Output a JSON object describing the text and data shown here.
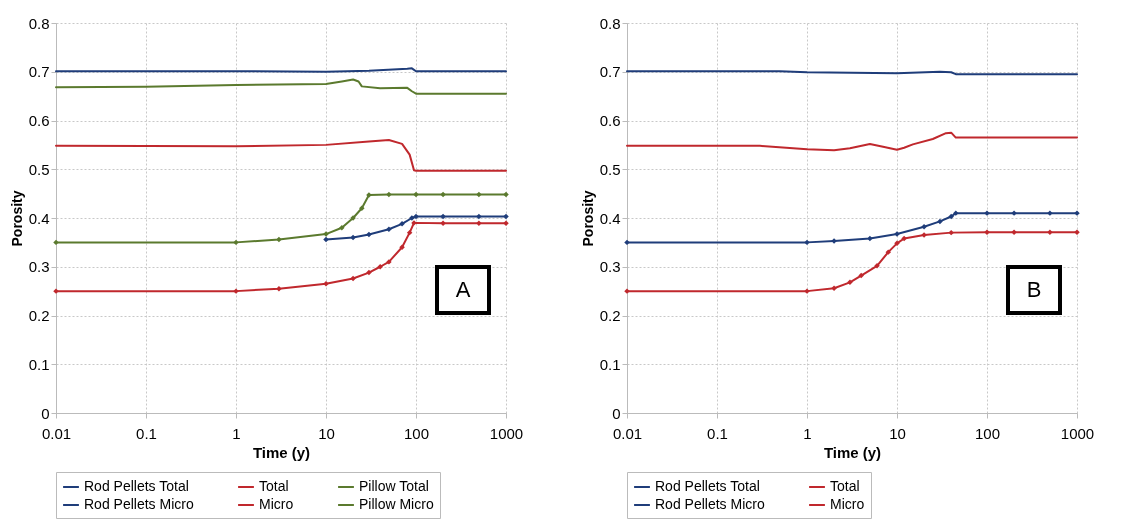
{
  "chart_data": [
    {
      "type": "line",
      "xlabel": "Time (y)",
      "ylabel": "Porosity",
      "annotations": [
        "A"
      ],
      "log": "x",
      "grid": true,
      "legend": "bottom",
      "line_style": "solid",
      "xlim": [
        0.01,
        1000
      ],
      "xticks": [
        0.01,
        0.1,
        1,
        10,
        100,
        1000
      ],
      "ylim": [
        0,
        0.8
      ],
      "yticks": [
        0,
        0.1,
        0.2,
        0.3,
        0.4,
        0.5,
        0.6,
        0.7,
        0.8
      ],
      "series": [
        {
          "name": "Rod Pellets Total",
          "color": "#1f3d7a",
          "marker": "none",
          "x": [
            0.01,
            1,
            10,
            30,
            80,
            90,
            100,
            1000
          ],
          "values": [
            0.701,
            0.701,
            0.7,
            0.702,
            0.706,
            0.707,
            0.701,
            0.701
          ]
        },
        {
          "name": "Total",
          "color": "#c0282d",
          "marker": "none",
          "x": [
            0.01,
            1,
            10,
            30,
            50,
            70,
            85,
            95,
            100,
            1000
          ],
          "values": [
            0.548,
            0.547,
            0.55,
            0.557,
            0.56,
            0.552,
            0.53,
            0.498,
            0.497,
            0.497
          ]
        },
        {
          "name": "Pillow Total",
          "color": "#5b7a2e",
          "marker": "none",
          "x": [
            0.01,
            0.1,
            1,
            10,
            15,
            20,
            23,
            25,
            40,
            80,
            90,
            100,
            1000
          ],
          "values": [
            0.668,
            0.669,
            0.673,
            0.675,
            0.68,
            0.684,
            0.68,
            0.67,
            0.666,
            0.667,
            0.66,
            0.655,
            0.655
          ]
        },
        {
          "name": "Rod Pellets Micro",
          "color": "#1f3d7a",
          "marker": "diamond",
          "x": [
            10,
            20,
            30,
            50,
            70,
            90,
            100,
            200,
            500,
            1000
          ],
          "values": [
            0.356,
            0.36,
            0.366,
            0.377,
            0.388,
            0.4,
            0.403,
            0.403,
            0.403,
            0.403
          ]
        },
        {
          "name": "Micro",
          "color": "#c0282d",
          "marker": "diamond",
          "x": [
            0.01,
            1,
            3,
            10,
            20,
            30,
            40,
            50,
            70,
            85,
            95,
            200,
            500,
            1000
          ],
          "values": [
            0.25,
            0.25,
            0.255,
            0.265,
            0.276,
            0.288,
            0.3,
            0.31,
            0.34,
            0.37,
            0.39,
            0.389,
            0.389,
            0.389
          ]
        },
        {
          "name": "Pillow Micro",
          "color": "#5b7a2e",
          "marker": "diamond",
          "x": [
            0.01,
            1,
            3,
            10,
            15,
            20,
            25,
            30,
            50,
            100,
            200,
            500,
            1000
          ],
          "values": [
            0.35,
            0.35,
            0.356,
            0.367,
            0.38,
            0.4,
            0.42,
            0.447,
            0.448,
            0.448,
            0.448,
            0.448,
            0.448
          ]
        }
      ]
    },
    {
      "type": "line",
      "xlabel": "Time (y)",
      "ylabel": "Porosity",
      "annotations": [
        "B"
      ],
      "log": "x",
      "grid": true,
      "legend": "bottom",
      "line_style": "solid",
      "xlim": [
        0.01,
        1000
      ],
      "xticks": [
        0.01,
        0.1,
        1,
        10,
        100,
        1000
      ],
      "ylim": [
        0,
        0.8
      ],
      "yticks": [
        0,
        0.1,
        0.2,
        0.3,
        0.4,
        0.5,
        0.6,
        0.7,
        0.8
      ],
      "series": [
        {
          "name": "Rod Pellets Total",
          "color": "#1f3d7a",
          "marker": "none",
          "x": [
            0.01,
            0.5,
            1,
            10,
            30,
            40,
            45,
            1000
          ],
          "values": [
            0.701,
            0.701,
            0.699,
            0.697,
            0.7,
            0.699,
            0.695,
            0.695
          ]
        },
        {
          "name": "Total",
          "color": "#c0282d",
          "marker": "none",
          "x": [
            0.01,
            0.3,
            1,
            2,
            3,
            5,
            7,
            10,
            12,
            15,
            25,
            35,
            40,
            45,
            1000
          ],
          "values": [
            0.548,
            0.548,
            0.541,
            0.539,
            0.543,
            0.552,
            0.546,
            0.54,
            0.544,
            0.551,
            0.562,
            0.574,
            0.575,
            0.565,
            0.565
          ]
        },
        {
          "name": "Rod Pellets Micro",
          "color": "#1f3d7a",
          "marker": "diamond",
          "x": [
            0.01,
            1,
            2,
            5,
            10,
            20,
            30,
            40,
            45,
            100,
            200,
            500,
            1000
          ],
          "values": [
            0.35,
            0.35,
            0.353,
            0.358,
            0.367,
            0.382,
            0.393,
            0.403,
            0.41,
            0.41,
            0.41,
            0.41,
            0.41
          ]
        },
        {
          "name": "Micro",
          "color": "#c0282d",
          "marker": "diamond",
          "x": [
            0.01,
            1,
            2,
            3,
            4,
            6,
            8,
            10,
            12,
            20,
            40,
            100,
            200,
            500,
            1000
          ],
          "values": [
            0.25,
            0.25,
            0.256,
            0.268,
            0.282,
            0.302,
            0.33,
            0.348,
            0.358,
            0.365,
            0.37,
            0.371,
            0.371,
            0.371,
            0.371
          ]
        }
      ]
    }
  ]
}
